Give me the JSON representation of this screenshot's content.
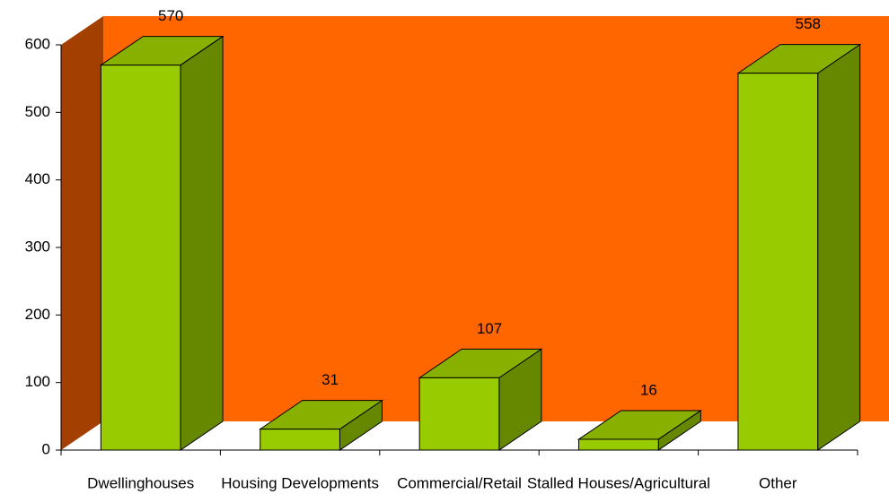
{
  "chart_data": {
    "type": "bar3d",
    "categories": [
      "Dwellinghouses",
      "Housing Developments",
      "Commercial/Retail",
      "Stalled Houses/Agricultural",
      "Other"
    ],
    "values": [
      570,
      31,
      107,
      16,
      558
    ],
    "color": "#99cc00",
    "wall_color": "#ff6600",
    "ylim": [
      0,
      600
    ],
    "yticks": [
      0,
      100,
      200,
      300,
      400,
      500,
      600
    ]
  }
}
